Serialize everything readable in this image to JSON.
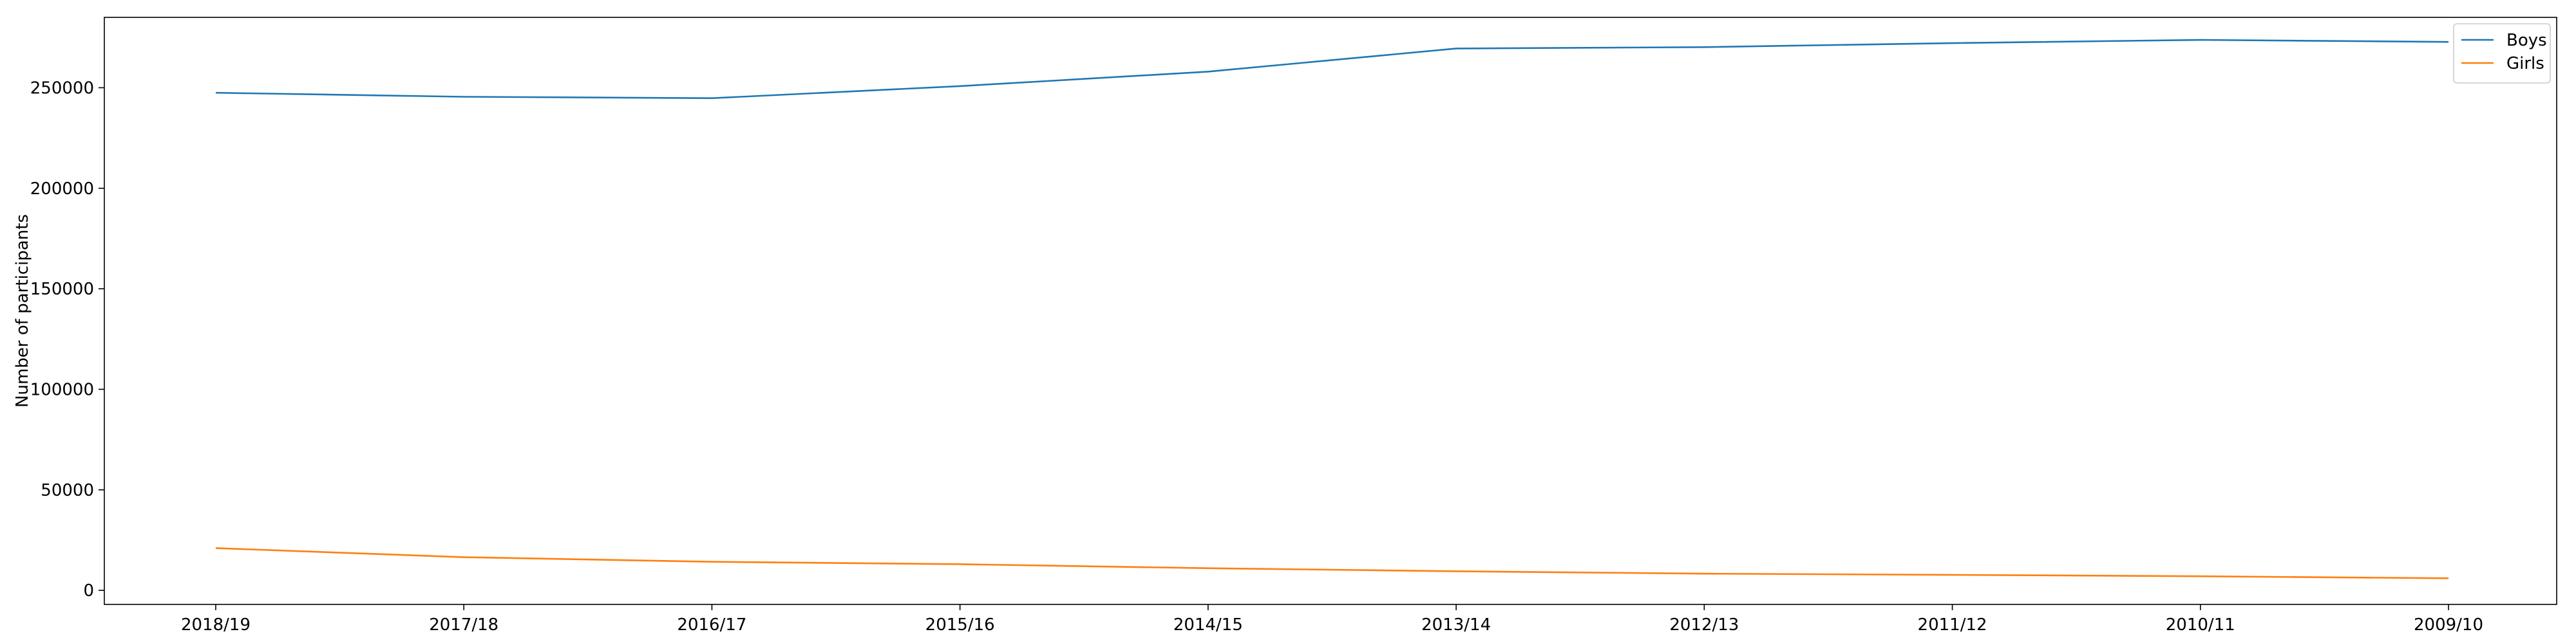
{
  "chart_data": {
    "type": "line",
    "title": "",
    "xlabel": "",
    "ylabel": "Number of participants",
    "categories": [
      "2018/19",
      "2017/18",
      "2016/17",
      "2015/16",
      "2014/15",
      "2013/14",
      "2012/13",
      "2011/12",
      "2010/11",
      "2009/10"
    ],
    "ylim": [
      -7000,
      285000
    ],
    "yticks": [
      0,
      50000,
      100000,
      150000,
      200000,
      250000
    ],
    "grid": false,
    "legend_position": "top-right",
    "series": [
      {
        "name": "Boys",
        "color": "#1f77b4",
        "values": [
          247500,
          245500,
          244800,
          250800,
          258000,
          269500,
          270200,
          272200,
          273800,
          272800
        ]
      },
      {
        "name": "Girls",
        "color": "#ff7f0e",
        "values": [
          21000,
          16500,
          14200,
          13000,
          11000,
          9500,
          8300,
          7700,
          7000,
          6000
        ]
      }
    ]
  }
}
